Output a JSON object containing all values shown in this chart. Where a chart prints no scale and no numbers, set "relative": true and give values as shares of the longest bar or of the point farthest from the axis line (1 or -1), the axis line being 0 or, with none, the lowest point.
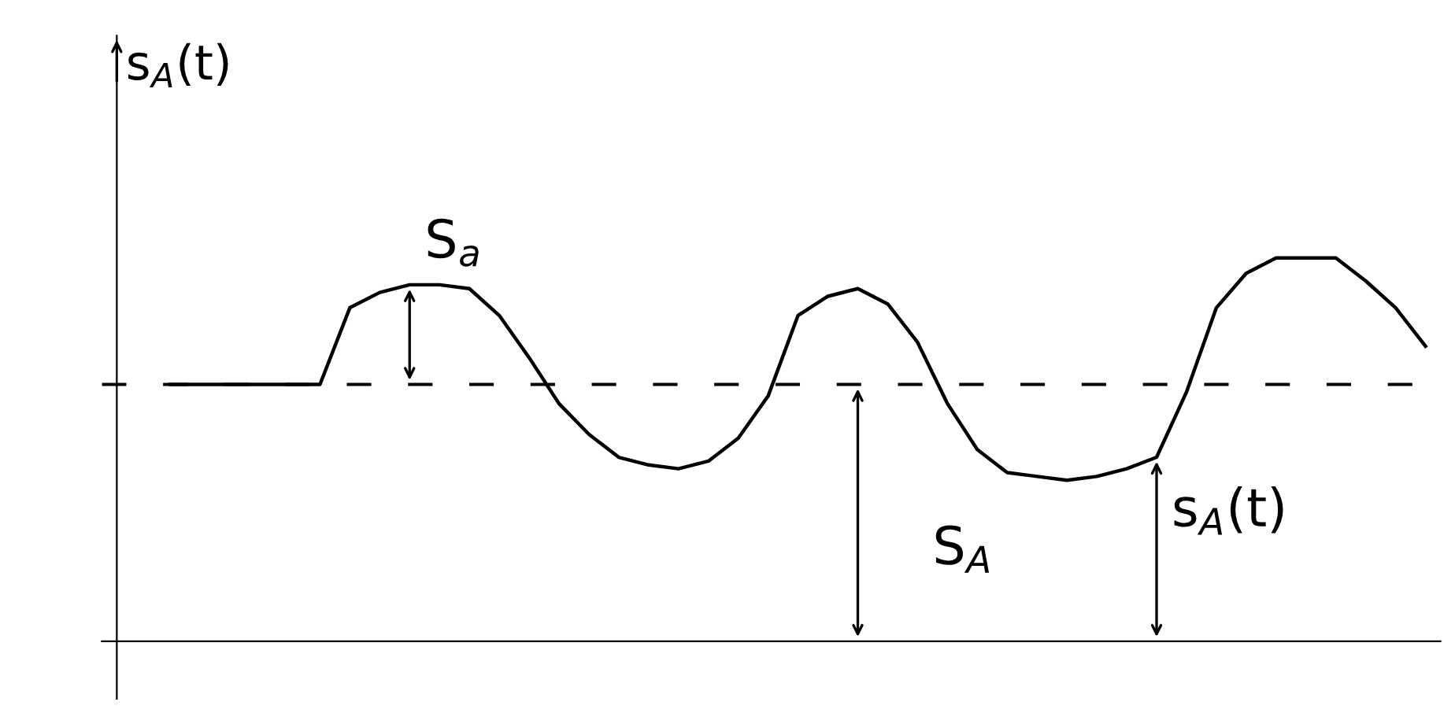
{
  "chart_data": {
    "type": "line",
    "relative": true,
    "ylabel": "s$_{A}$(t)",
    "categories": [
      null,
      null,
      null,
      null,
      null,
      null,
      null,
      null,
      null,
      null,
      null,
      null,
      null,
      null,
      null,
      null,
      null,
      null,
      null,
      null,
      null,
      null,
      null,
      null,
      null,
      null,
      null,
      null,
      null,
      null,
      null,
      null,
      null,
      null,
      null,
      null,
      null,
      null,
      null,
      null,
      null,
      null,
      null
    ],
    "series": [
      {
        "color": "#000000",
        "values": [
          0.67,
          0.67,
          0.67,
          0.67,
          0.67,
          0.67,
          0.87,
          0.91,
          0.93,
          0.93,
          0.92,
          0.85,
          0.74,
          0.62,
          0.54,
          0.48,
          0.46,
          0.45,
          0.47,
          0.53,
          0.64,
          0.85,
          0.9,
          0.92,
          0.88,
          0.78,
          0.62,
          0.5,
          0.44,
          0.43,
          0.42,
          0.43,
          0.45,
          0.48,
          0.65,
          0.87,
          0.96,
          1.0,
          1.0,
          1.0,
          0.94,
          0.87,
          0.77
        ]
      }
    ],
    "ref_lines": [
      {
        "axis": "y",
        "value": 0.67,
        "label": null,
        "color": "#000000",
        "line_style": "dashed"
      }
    ],
    "annotations": [
      "S$_{a}$",
      "S$_{A}$",
      "s$_{A}$(t)"
    ],
    "legend": false,
    "tick_labels": false,
    "marker": "none",
    "line_style": "solid"
  }
}
